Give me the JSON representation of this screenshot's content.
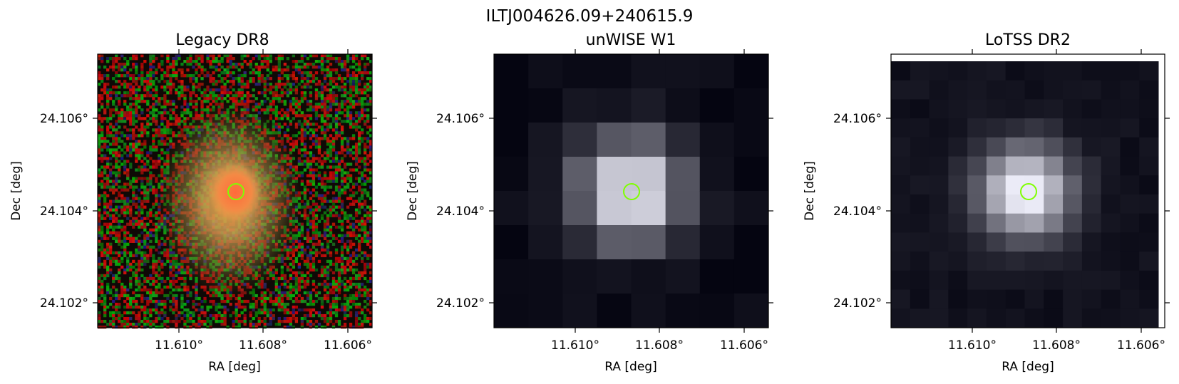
{
  "figure": {
    "title": "ILTJ004626.09+240615.9"
  },
  "marker_color": "#7fff00",
  "panels": [
    {
      "title": "Legacy DR8",
      "xlabel": "RA [deg]",
      "ylabel": "Dec [deg]",
      "xticks": [
        "11.610°",
        "11.608°",
        "11.606°"
      ],
      "yticks": [
        "24.106°",
        "24.104°",
        "24.102°"
      ],
      "image": "Legacy DR8 colour cutout: noisy red/green/black background with an extended orange-yellow galaxy"
    },
    {
      "title": "unWISE W1",
      "xlabel": "RA [deg]",
      "ylabel": "Dec [deg]",
      "xticks": [
        "11.610°",
        "11.608°",
        "11.606°"
      ],
      "yticks": [
        "24.106°",
        "24.104°",
        "24.102°"
      ],
      "image": "unWISE W1 grayscale cutout, coarse pixels, bright source at centre"
    },
    {
      "title": "LoTSS DR2",
      "xlabel": "RA [deg]",
      "ylabel": "Dec [deg]",
      "xticks": [
        "11.610°",
        "11.608°",
        "11.606°"
      ],
      "yticks": [
        "24.106°",
        "24.104°",
        "24.102°"
      ],
      "image": "LoTSS DR2 radio grayscale cutout, bright compact source at centre"
    }
  ]
}
